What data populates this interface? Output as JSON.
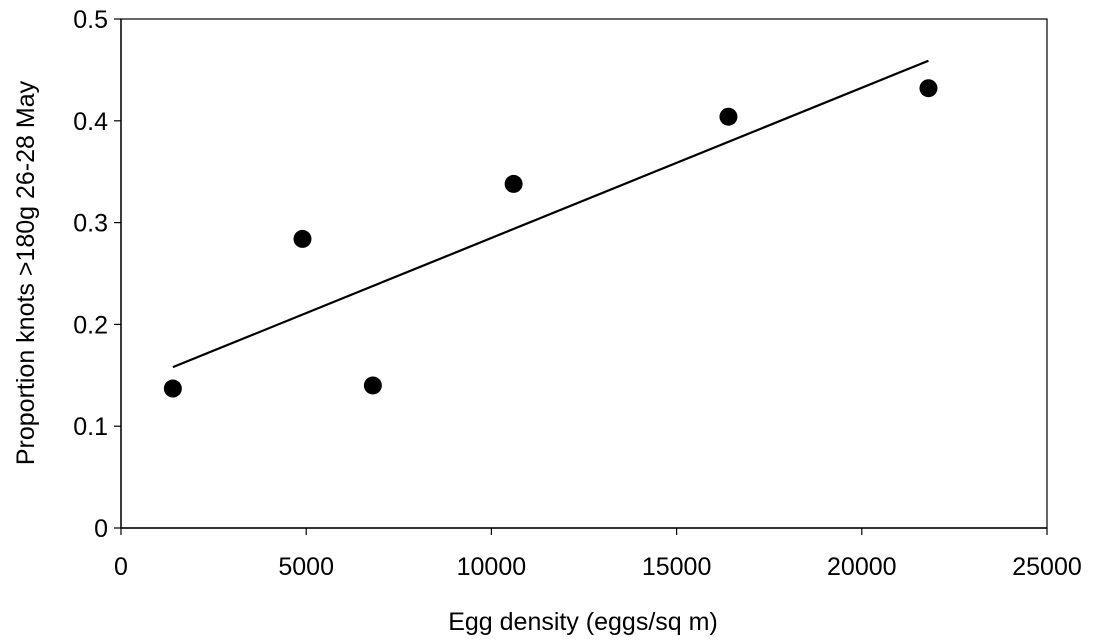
{
  "chart_data": {
    "type": "scatter",
    "title": "",
    "xlabel": "Egg density (eggs/sq m)",
    "ylabel": "Proportion knots >180g 26-28 May",
    "xlim": [
      0,
      25000
    ],
    "ylim": [
      0,
      0.5
    ],
    "xticks": [
      0,
      5000,
      10000,
      15000,
      20000,
      25000
    ],
    "yticks": [
      0,
      0.1,
      0.2,
      0.3,
      0.4,
      0.5
    ],
    "xtick_labels": [
      "0",
      "5000",
      "10000",
      "15000",
      "20000",
      "25000"
    ],
    "ytick_labels": [
      "0",
      "0.1",
      "0.2",
      "0.3",
      "0.4",
      "0.5"
    ],
    "grid": false,
    "legend": "none",
    "series": [
      {
        "marker": "filled-circle",
        "color": "#000000",
        "points": [
          {
            "x": 1400,
            "y": 0.137
          },
          {
            "x": 4900,
            "y": 0.284
          },
          {
            "x": 6800,
            "y": 0.14
          },
          {
            "x": 10600,
            "y": 0.338
          },
          {
            "x": 16400,
            "y": 0.404
          },
          {
            "x": 21800,
            "y": 0.432
          }
        ]
      }
    ],
    "trendline": {
      "type": "linear",
      "color": "#000000",
      "from": {
        "x": 1400,
        "y": 0.158
      },
      "to": {
        "x": 21800,
        "y": 0.459
      }
    }
  }
}
